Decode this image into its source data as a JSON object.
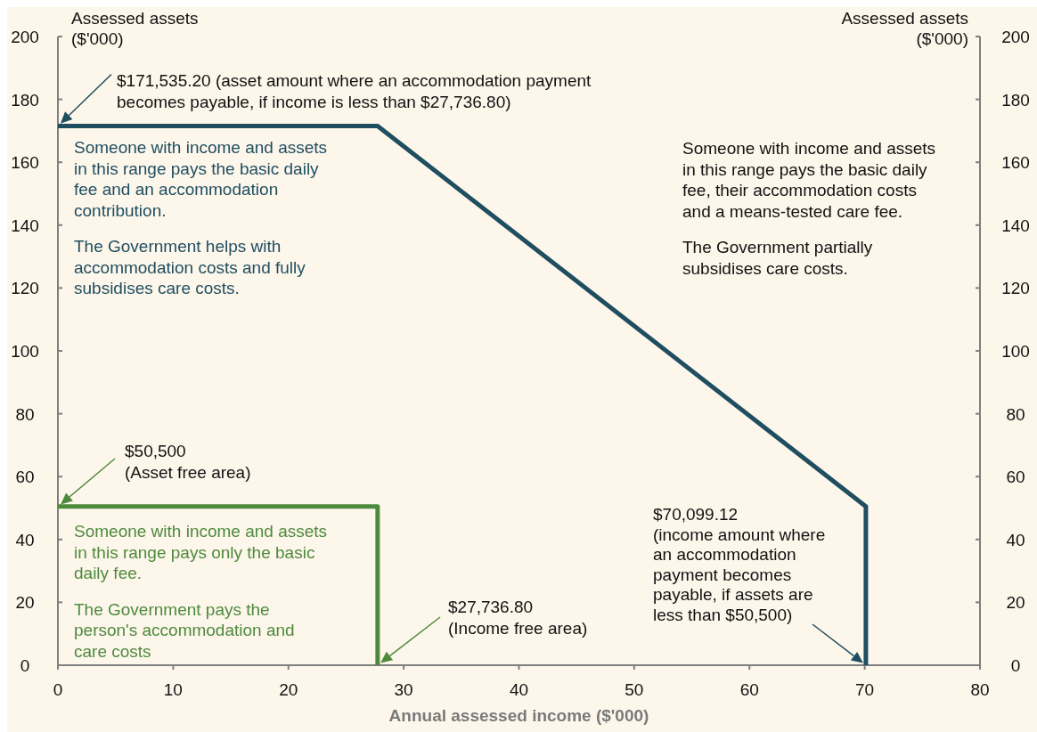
{
  "chart_data": {
    "type": "line",
    "xlabel": "Annual assessed  income ($'000)",
    "ylabel": "Assessed assets\n($'000)",
    "y2label": "Assessed assets\n($'000)",
    "xlim": [
      0,
      80
    ],
    "xticks": [
      0,
      10,
      20,
      30,
      40,
      50,
      60,
      70,
      80
    ],
    "ylim": [
      0,
      200
    ],
    "yticks": [
      0,
      20,
      40,
      60,
      80,
      100,
      120,
      140,
      160,
      180,
      200
    ],
    "y2lim": [
      0,
      200
    ],
    "y2ticks": [
      0,
      20,
      40,
      60,
      80,
      100,
      120,
      140,
      160,
      180,
      200
    ],
    "grid": false,
    "series": [
      {
        "color": "#1f4e61",
        "x": [
          0,
          27.7368,
          70.09912,
          70.09912
        ],
        "values": [
          171.5352,
          171.5352,
          50.5,
          0
        ]
      },
      {
        "color": "#4e8a3e",
        "x": [
          0,
          27.7368,
          27.7368
        ],
        "values": [
          50.5,
          50.5,
          0
        ]
      }
    ],
    "annotations": [
      "$171,535.20  (asset amount where an accommodation payment\nbecomes payable, if income is less than $27,736.80)",
      "Someone with income and assets\nin this range pays the basic daily\nfee and an accommodation\ncontribution.\n\nThe Government  helps with\naccommodation costs and fully\nsubsidises care costs.",
      "Someone with income and assets\nin this range pays the basic daily\nfee, their accommodation costs\nand a means-tested care fee.\n\nThe Government  partially\nsubsidises care costs.",
      "$50,500\n(Asset free area)",
      "Someone with income and assets\nin this range pays only the basic\ndaily fee.\n\nThe Government  pays the\nperson's accommodation and\ncare costs",
      "$27,736.80\n(Income free area)",
      "$70,099.12\n(income amount where\nan accommodation\npayment becomes\npayable, if assets are\nless than $50,500)"
    ]
  }
}
